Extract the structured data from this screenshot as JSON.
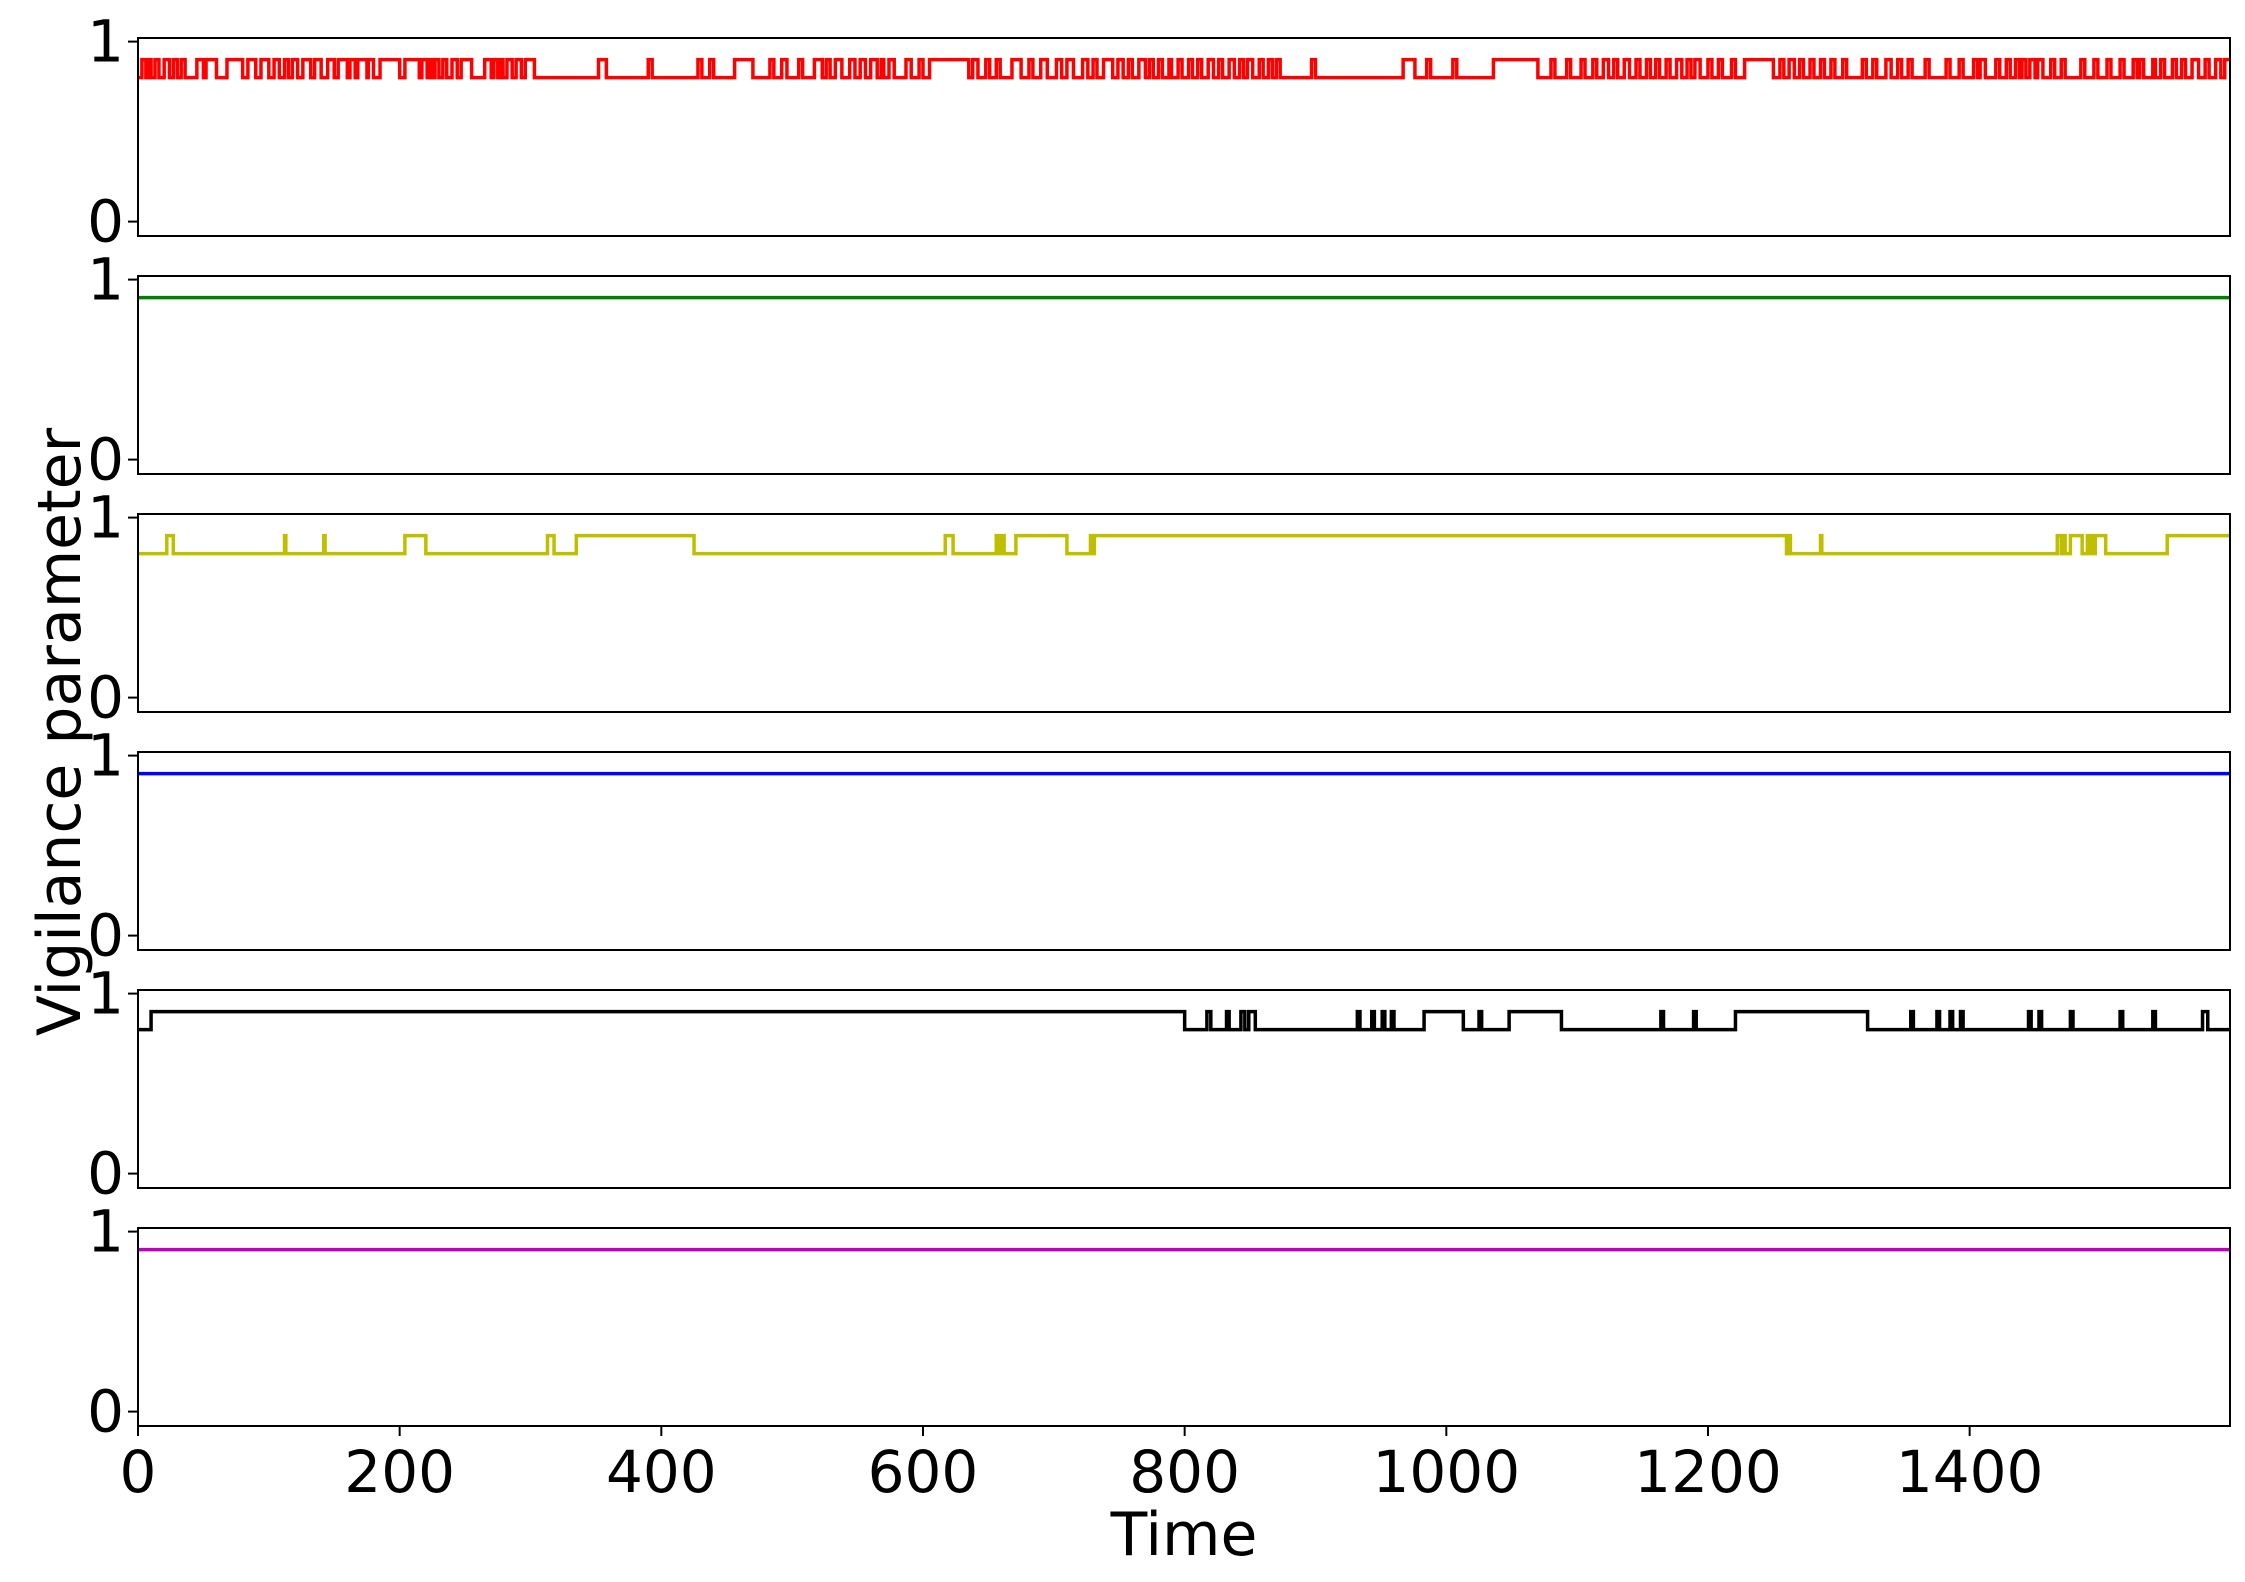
{
  "chart_data": {
    "type": "line",
    "xlabel": "Time",
    "ylabel": "Vigilance parameter",
    "xlim": [
      0,
      1599
    ],
    "ylim": [
      -0.08,
      1.02
    ],
    "x_ticks": [
      0,
      200,
      400,
      600,
      800,
      1000,
      1200,
      1400
    ],
    "x_tick_labels": [
      "0",
      "200",
      "400",
      "600",
      "800",
      "1000",
      "1200",
      "1400"
    ],
    "y_ticks": [
      0,
      1
    ],
    "y_tick_labels": [
      "0",
      "1"
    ],
    "grid": false,
    "legend": "none",
    "panels": [
      {
        "color": "#ff0000",
        "levels": {
          "low": 0.8,
          "high": 0.9
        },
        "initial": "low",
        "high_intervals": [
          [
            3,
            6
          ],
          [
            8,
            10
          ],
          [
            13,
            16
          ],
          [
            20,
            24
          ],
          [
            27,
            30
          ],
          [
            33,
            36
          ],
          [
            45,
            50
          ],
          [
            52,
            60
          ],
          [
            68,
            80
          ],
          [
            84,
            90
          ],
          [
            94,
            100
          ],
          [
            104,
            108
          ],
          [
            112,
            115
          ],
          [
            118,
            122
          ],
          [
            126,
            132
          ],
          [
            135,
            140
          ],
          [
            145,
            150
          ],
          [
            153,
            160
          ],
          [
            162,
            166
          ],
          [
            168,
            175
          ],
          [
            176,
            180
          ],
          [
            185,
            200
          ],
          [
            204,
            215
          ],
          [
            217,
            221
          ],
          [
            223,
            225
          ],
          [
            227,
            230
          ],
          [
            233,
            236
          ],
          [
            240,
            244
          ],
          [
            247,
            255
          ],
          [
            265,
            270
          ],
          [
            272,
            275
          ],
          [
            277,
            279
          ],
          [
            282,
            286
          ],
          [
            289,
            293
          ],
          [
            296,
            303
          ],
          [
            352,
            358
          ],
          [
            390,
            393
          ],
          [
            428,
            431
          ],
          [
            437,
            440
          ],
          [
            456,
            470
          ],
          [
            483,
            486
          ],
          [
            492,
            496
          ],
          [
            505,
            508
          ],
          [
            517,
            523
          ],
          [
            526,
            529
          ],
          [
            533,
            538
          ],
          [
            544,
            548
          ],
          [
            552,
            556
          ],
          [
            560,
            565
          ],
          [
            568,
            570
          ],
          [
            574,
            578
          ],
          [
            587,
            591
          ],
          [
            597,
            600
          ],
          [
            605,
            635
          ],
          [
            638,
            642
          ],
          [
            648,
            651
          ],
          [
            656,
            659
          ],
          [
            668,
            675
          ],
          [
            681,
            684
          ],
          [
            690,
            695
          ],
          [
            702,
            706
          ],
          [
            710,
            715
          ],
          [
            722,
            726
          ],
          [
            730,
            733
          ],
          [
            738,
            745
          ],
          [
            749,
            753
          ],
          [
            757,
            760
          ],
          [
            765,
            770
          ],
          [
            773,
            776
          ],
          [
            780,
            783
          ],
          [
            788,
            790
          ],
          [
            795,
            798
          ],
          [
            803,
            806
          ],
          [
            810,
            813
          ],
          [
            818,
            822
          ],
          [
            826,
            829
          ],
          [
            834,
            838
          ],
          [
            842,
            845
          ],
          [
            848,
            852
          ],
          [
            857,
            860
          ],
          [
            864,
            867
          ],
          [
            870,
            873
          ],
          [
            897,
            900
          ],
          [
            967,
            976
          ],
          [
            985,
            988
          ],
          [
            1005,
            1008
          ],
          [
            1036,
            1070
          ],
          [
            1080,
            1083
          ],
          [
            1092,
            1095
          ],
          [
            1103,
            1106
          ],
          [
            1112,
            1115
          ],
          [
            1120,
            1124
          ],
          [
            1128,
            1131
          ],
          [
            1136,
            1140
          ],
          [
            1145,
            1148
          ],
          [
            1153,
            1156
          ],
          [
            1160,
            1163
          ],
          [
            1168,
            1171
          ],
          [
            1176,
            1180
          ],
          [
            1184,
            1187
          ],
          [
            1190,
            1194
          ],
          [
            1200,
            1203
          ],
          [
            1208,
            1211
          ],
          [
            1218,
            1221
          ],
          [
            1228,
            1250
          ],
          [
            1255,
            1258
          ],
          [
            1262,
            1266
          ],
          [
            1270,
            1273
          ],
          [
            1278,
            1281
          ],
          [
            1286,
            1289
          ],
          [
            1294,
            1297
          ],
          [
            1303,
            1306
          ],
          [
            1318,
            1321
          ],
          [
            1326,
            1329
          ],
          [
            1336,
            1340
          ],
          [
            1345,
            1348
          ],
          [
            1353,
            1356
          ],
          [
            1366,
            1369
          ],
          [
            1382,
            1385
          ],
          [
            1392,
            1395
          ],
          [
            1403,
            1406
          ],
          [
            1408,
            1412
          ],
          [
            1420,
            1423
          ],
          [
            1428,
            1431
          ],
          [
            1435,
            1438
          ],
          [
            1440,
            1443
          ],
          [
            1446,
            1450
          ],
          [
            1452,
            1456
          ],
          [
            1462,
            1465
          ],
          [
            1470,
            1473
          ],
          [
            1485,
            1488
          ],
          [
            1495,
            1498
          ],
          [
            1505,
            1508
          ],
          [
            1515,
            1518
          ],
          [
            1525,
            1528
          ],
          [
            1530,
            1533
          ],
          [
            1540,
            1542
          ],
          [
            1546,
            1549
          ],
          [
            1555,
            1558
          ],
          [
            1562,
            1565
          ],
          [
            1570,
            1575
          ],
          [
            1580,
            1583
          ],
          [
            1588,
            1592
          ],
          [
            1595,
            1599
          ]
        ]
      },
      {
        "color": "#008000",
        "levels": {
          "low": 0.8,
          "high": 0.9
        },
        "initial": "high",
        "high_intervals": [
          [
            0,
            1599
          ]
        ]
      },
      {
        "color": "#bfbf00",
        "levels": {
          "low": 0.8,
          "high": 0.9
        },
        "initial": "low",
        "high_intervals": [
          [
            22,
            27
          ],
          [
            112,
            113
          ],
          [
            142,
            143
          ],
          [
            204,
            220
          ],
          [
            313,
            318
          ],
          [
            335,
            425
          ],
          [
            617,
            623
          ],
          [
            656,
            658
          ],
          [
            660,
            662
          ],
          [
            671,
            710
          ],
          [
            728,
            729
          ],
          [
            731,
            1260
          ],
          [
            1262,
            1263
          ],
          [
            1286,
            1287
          ],
          [
            1467,
            1470
          ],
          [
            1471,
            1473
          ],
          [
            1477,
            1486
          ],
          [
            1490,
            1492
          ],
          [
            1493,
            1495
          ],
          [
            1496,
            1504
          ],
          [
            1551,
            1599
          ]
        ]
      },
      {
        "color": "#0000ff",
        "levels": {
          "low": 0.8,
          "high": 0.9
        },
        "initial": "high",
        "high_intervals": [
          [
            0,
            1599
          ]
        ]
      },
      {
        "color": "#000000",
        "levels": {
          "low": 0.8,
          "high": 0.9
        },
        "initial": "low",
        "high_intervals": [
          [
            10,
            800
          ],
          [
            817,
            820
          ],
          [
            832,
            834
          ],
          [
            843,
            846
          ],
          [
            849,
            854
          ],
          [
            932,
            934
          ],
          [
            943,
            945
          ],
          [
            951,
            953
          ],
          [
            958,
            960
          ],
          [
            983,
            1013
          ],
          [
            1025,
            1027
          ],
          [
            1048,
            1088
          ],
          [
            1164,
            1166
          ],
          [
            1189,
            1191
          ],
          [
            1221,
            1322
          ],
          [
            1355,
            1357
          ],
          [
            1375,
            1377
          ],
          [
            1385,
            1387
          ],
          [
            1393,
            1395
          ],
          [
            1445,
            1447
          ],
          [
            1453,
            1455
          ],
          [
            1477,
            1479
          ],
          [
            1515,
            1517
          ],
          [
            1540,
            1542
          ],
          [
            1578,
            1582
          ]
        ]
      },
      {
        "color": "#bf00bf",
        "levels": {
          "low": 0.8,
          "high": 0.9
        },
        "initial": "high",
        "high_intervals": [
          [
            0,
            1599
          ]
        ]
      }
    ]
  }
}
